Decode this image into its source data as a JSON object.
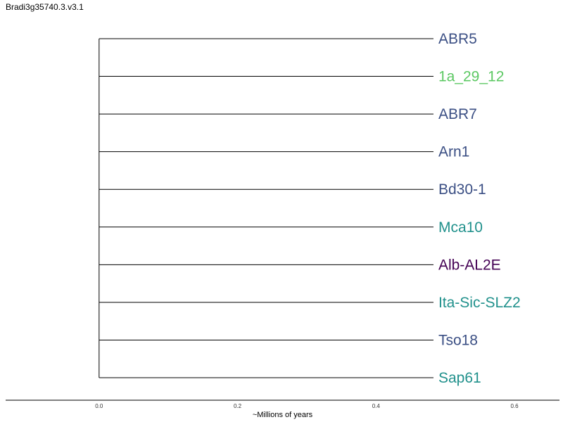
{
  "title": "Bradi3g35740.3.v3.1",
  "chart_data": {
    "type": "dendrogram",
    "xlabel": "~Millions of years",
    "xlim": [
      -0.135,
      0.665
    ],
    "x_ticks": [
      "0.0",
      "0.2",
      "0.4",
      "0.6"
    ],
    "x_tick_values": [
      0.0,
      0.2,
      0.4,
      0.6
    ],
    "root_x": 0.0,
    "leaves": [
      {
        "name": "ABR5",
        "branch_end": 0.483,
        "color": "#3b4f84"
      },
      {
        "name": "1a_29_12",
        "branch_end": 0.483,
        "color": "#5cc863"
      },
      {
        "name": "ABR7",
        "branch_end": 0.483,
        "color": "#3b4f84"
      },
      {
        "name": "Arn1",
        "branch_end": 0.483,
        "color": "#3b4f84"
      },
      {
        "name": "Bd30-1",
        "branch_end": 0.483,
        "color": "#3b4f84"
      },
      {
        "name": "Mca10",
        "branch_end": 0.483,
        "color": "#21918c"
      },
      {
        "name": "Alb-AL2E",
        "branch_end": 0.483,
        "color": "#440154"
      },
      {
        "name": "Ita-Sic-SLZ2",
        "branch_end": 0.483,
        "color": "#21918c"
      },
      {
        "name": "Tso18",
        "branch_end": 0.483,
        "color": "#3b4f84"
      },
      {
        "name": "Sap61",
        "branch_end": 0.483,
        "color": "#21918c"
      }
    ]
  }
}
